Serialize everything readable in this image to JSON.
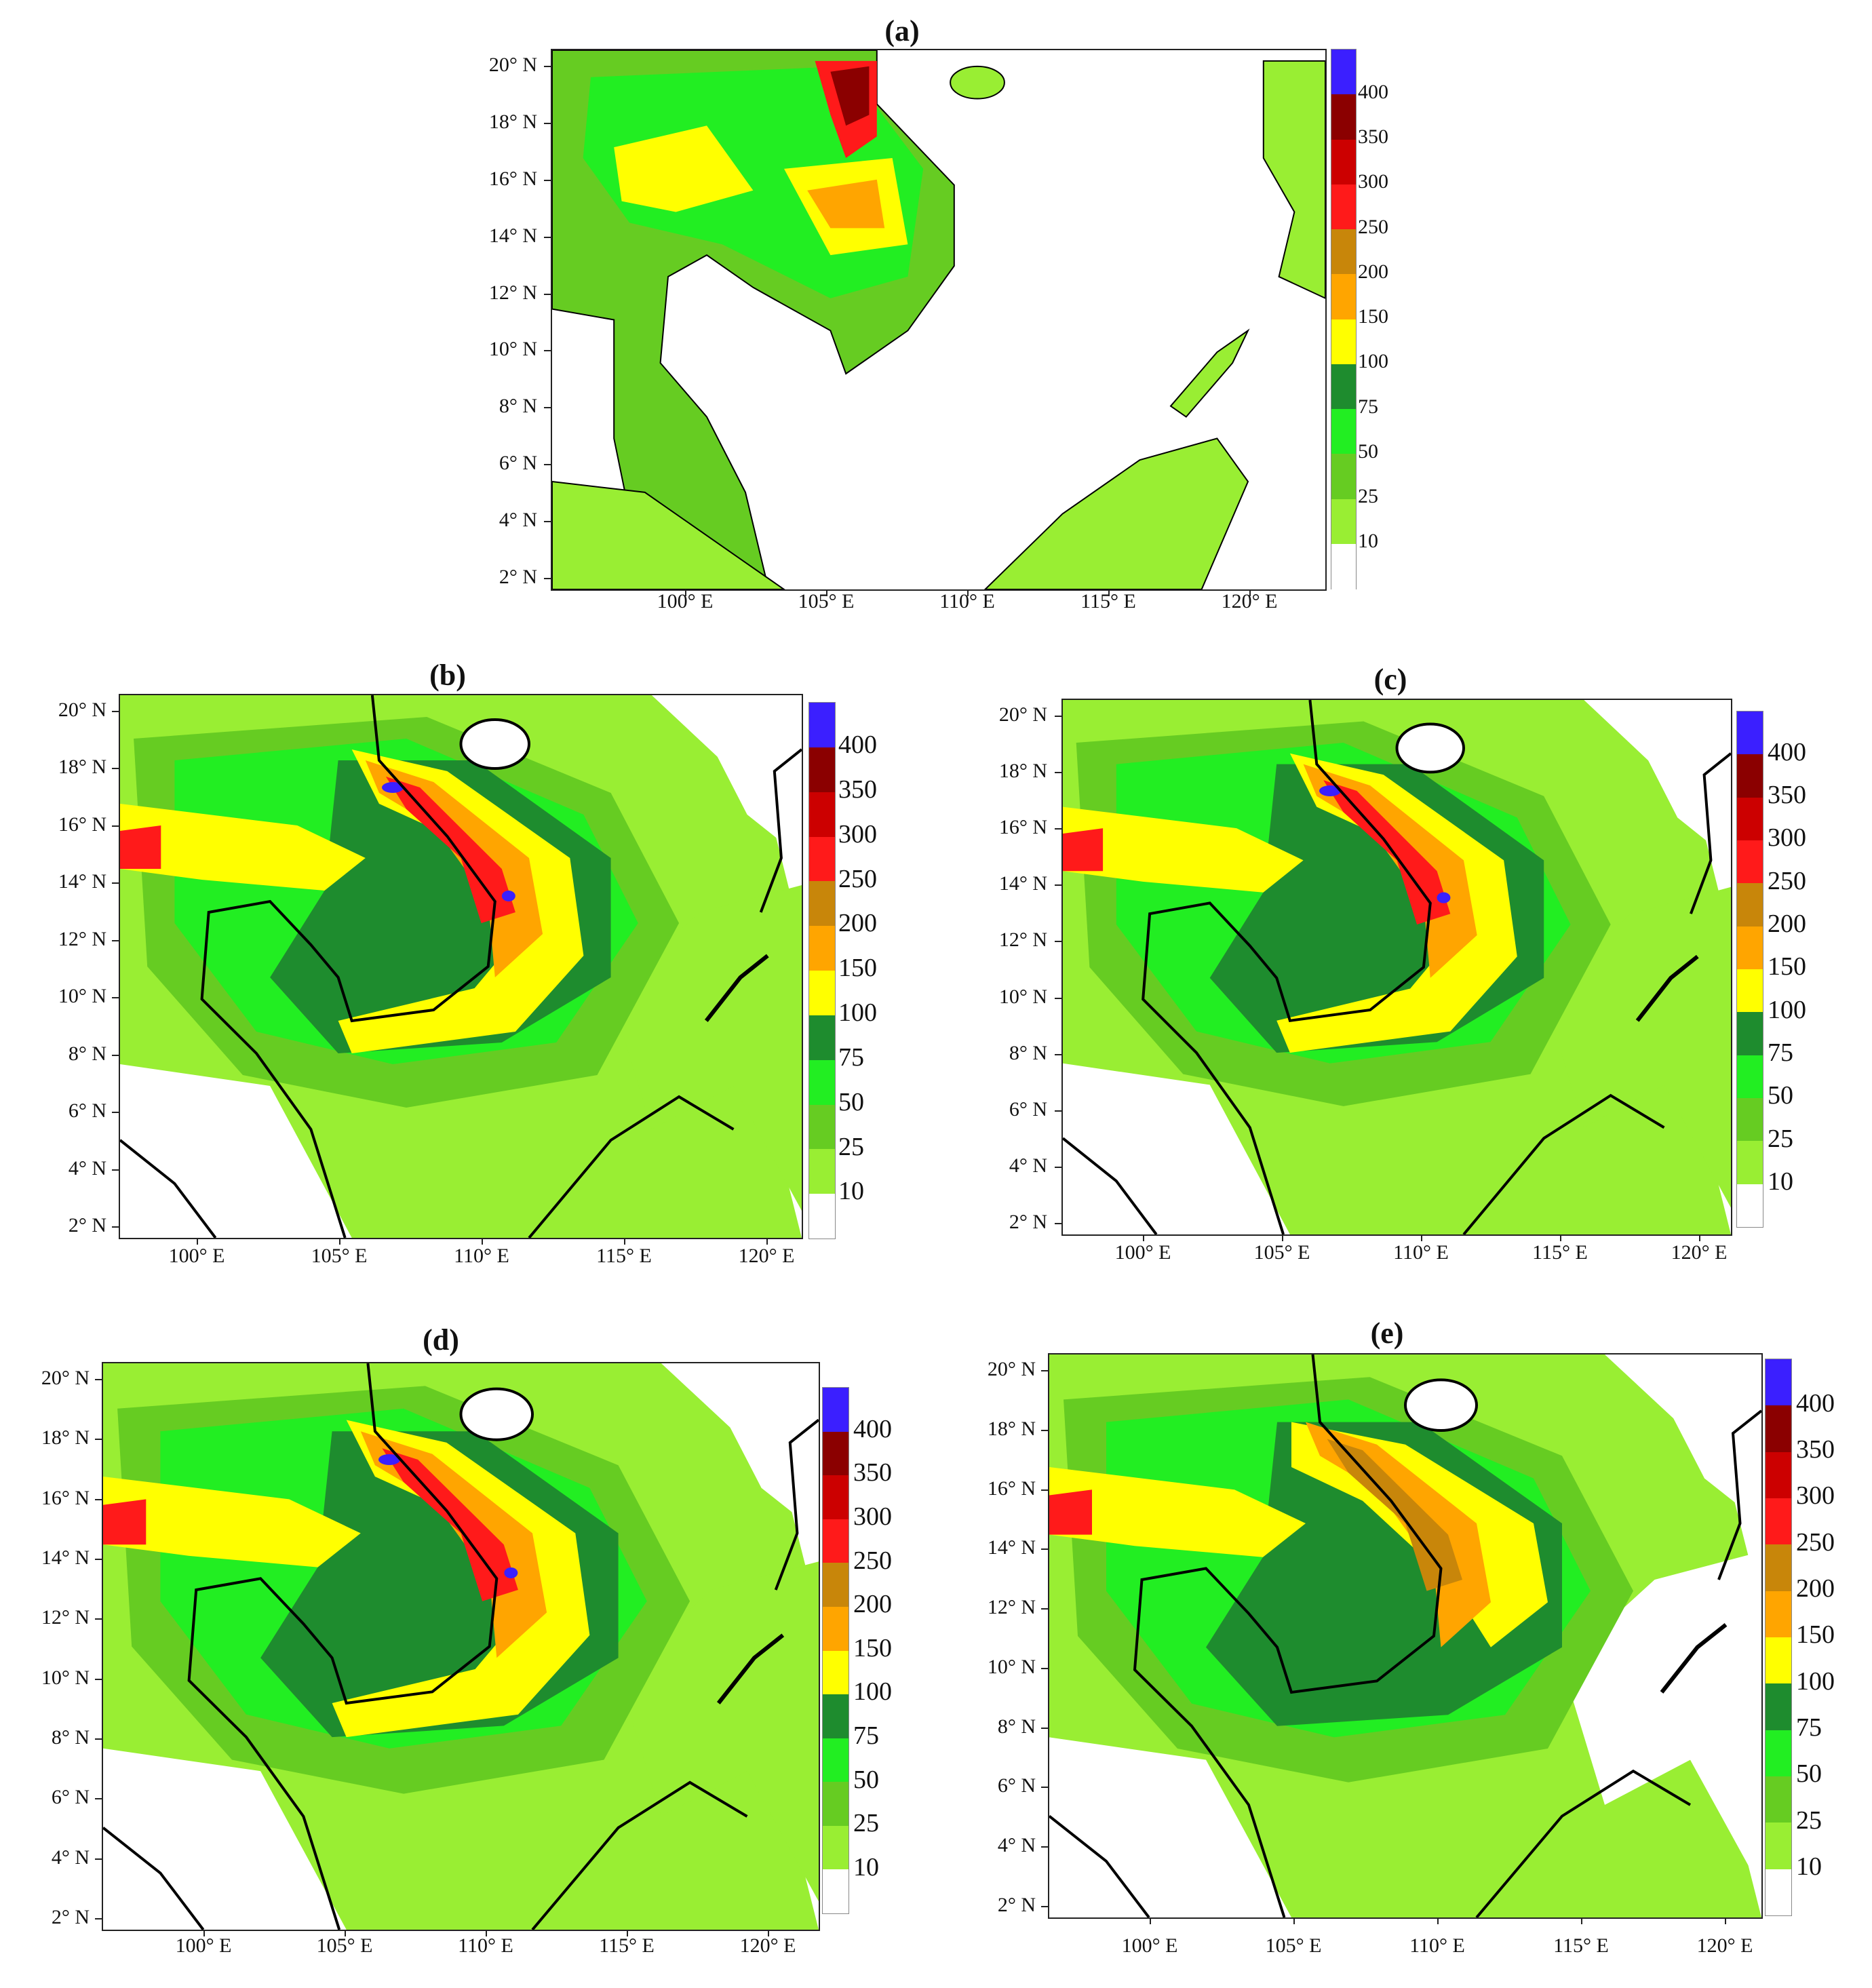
{
  "panels": [
    {
      "id": "a",
      "title": "(a)"
    },
    {
      "id": "b",
      "title": "(b)"
    },
    {
      "id": "c",
      "title": "(c)"
    },
    {
      "id": "d",
      "title": "(d)"
    },
    {
      "id": "e",
      "title": "(e)"
    }
  ],
  "lat_labels": [
    "20° N",
    "18° N",
    "16° N",
    "14° N",
    "12° N",
    "10° N",
    "8° N",
    "6° N",
    "4° N",
    "2° N"
  ],
  "lon_labels": [
    "100° E",
    "105° E",
    "110° E",
    "115° E",
    "120° E"
  ],
  "colorbar": {
    "labels": [
      "400",
      "350",
      "300",
      "250",
      "200",
      "150",
      "100",
      "75",
      "50",
      "25",
      "10"
    ],
    "colors": [
      "#3b1fff",
      "#8b0000",
      "#cc0000",
      "#ff1a1a",
      "#c8860a",
      "#ffa500",
      "#ffff00",
      "#1e8c2e",
      "#22ee22",
      "#66cc22",
      "#99ee33",
      "#ffffff"
    ]
  },
  "map_colors": {
    "sea": "#ffffff",
    "coast": "#000000",
    "border": "#666666",
    "light_green": "#99ee33",
    "mid_green": "#66cc22",
    "bright_green": "#22ee22",
    "dark_green": "#1e8c2e",
    "yellow": "#ffff00",
    "orange": "#ffa500",
    "brown": "#c8860a",
    "red": "#ff1a1a",
    "dark_red": "#8b0000",
    "blue": "#3b1fff"
  }
}
